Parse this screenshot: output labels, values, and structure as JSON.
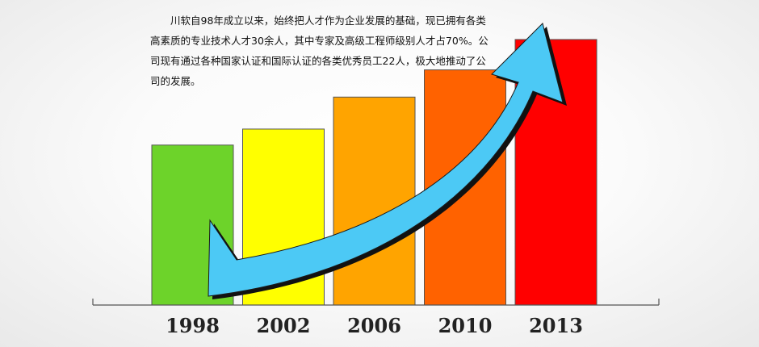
{
  "intro_text": "川软自98年成立以来，始终把人才作为企业发展的基础，现已拥有各类高素质的专业技术人才30余人，其中专家及高级工程师级别人才占70%。公司现有通过各种国家认证和国际认证的各类优秀员工22人，极大地推动了公司的发展。",
  "chart_data": {
    "type": "bar",
    "categories": [
      "1998",
      "2002",
      "2006",
      "2010",
      "2013"
    ],
    "values": [
      1.0,
      1.1,
      1.3,
      1.47,
      1.66
    ],
    "colors": [
      "#6dd32a",
      "#ffff00",
      "#ffa400",
      "#ff6200",
      "#ff0000"
    ],
    "ylim": [
      0,
      1.7
    ],
    "grid": false,
    "legend": "none",
    "title": "",
    "xlabel": "",
    "ylabel": "",
    "trend_arrow": {
      "color": "#4cc9f5",
      "direction": "up-right"
    }
  }
}
